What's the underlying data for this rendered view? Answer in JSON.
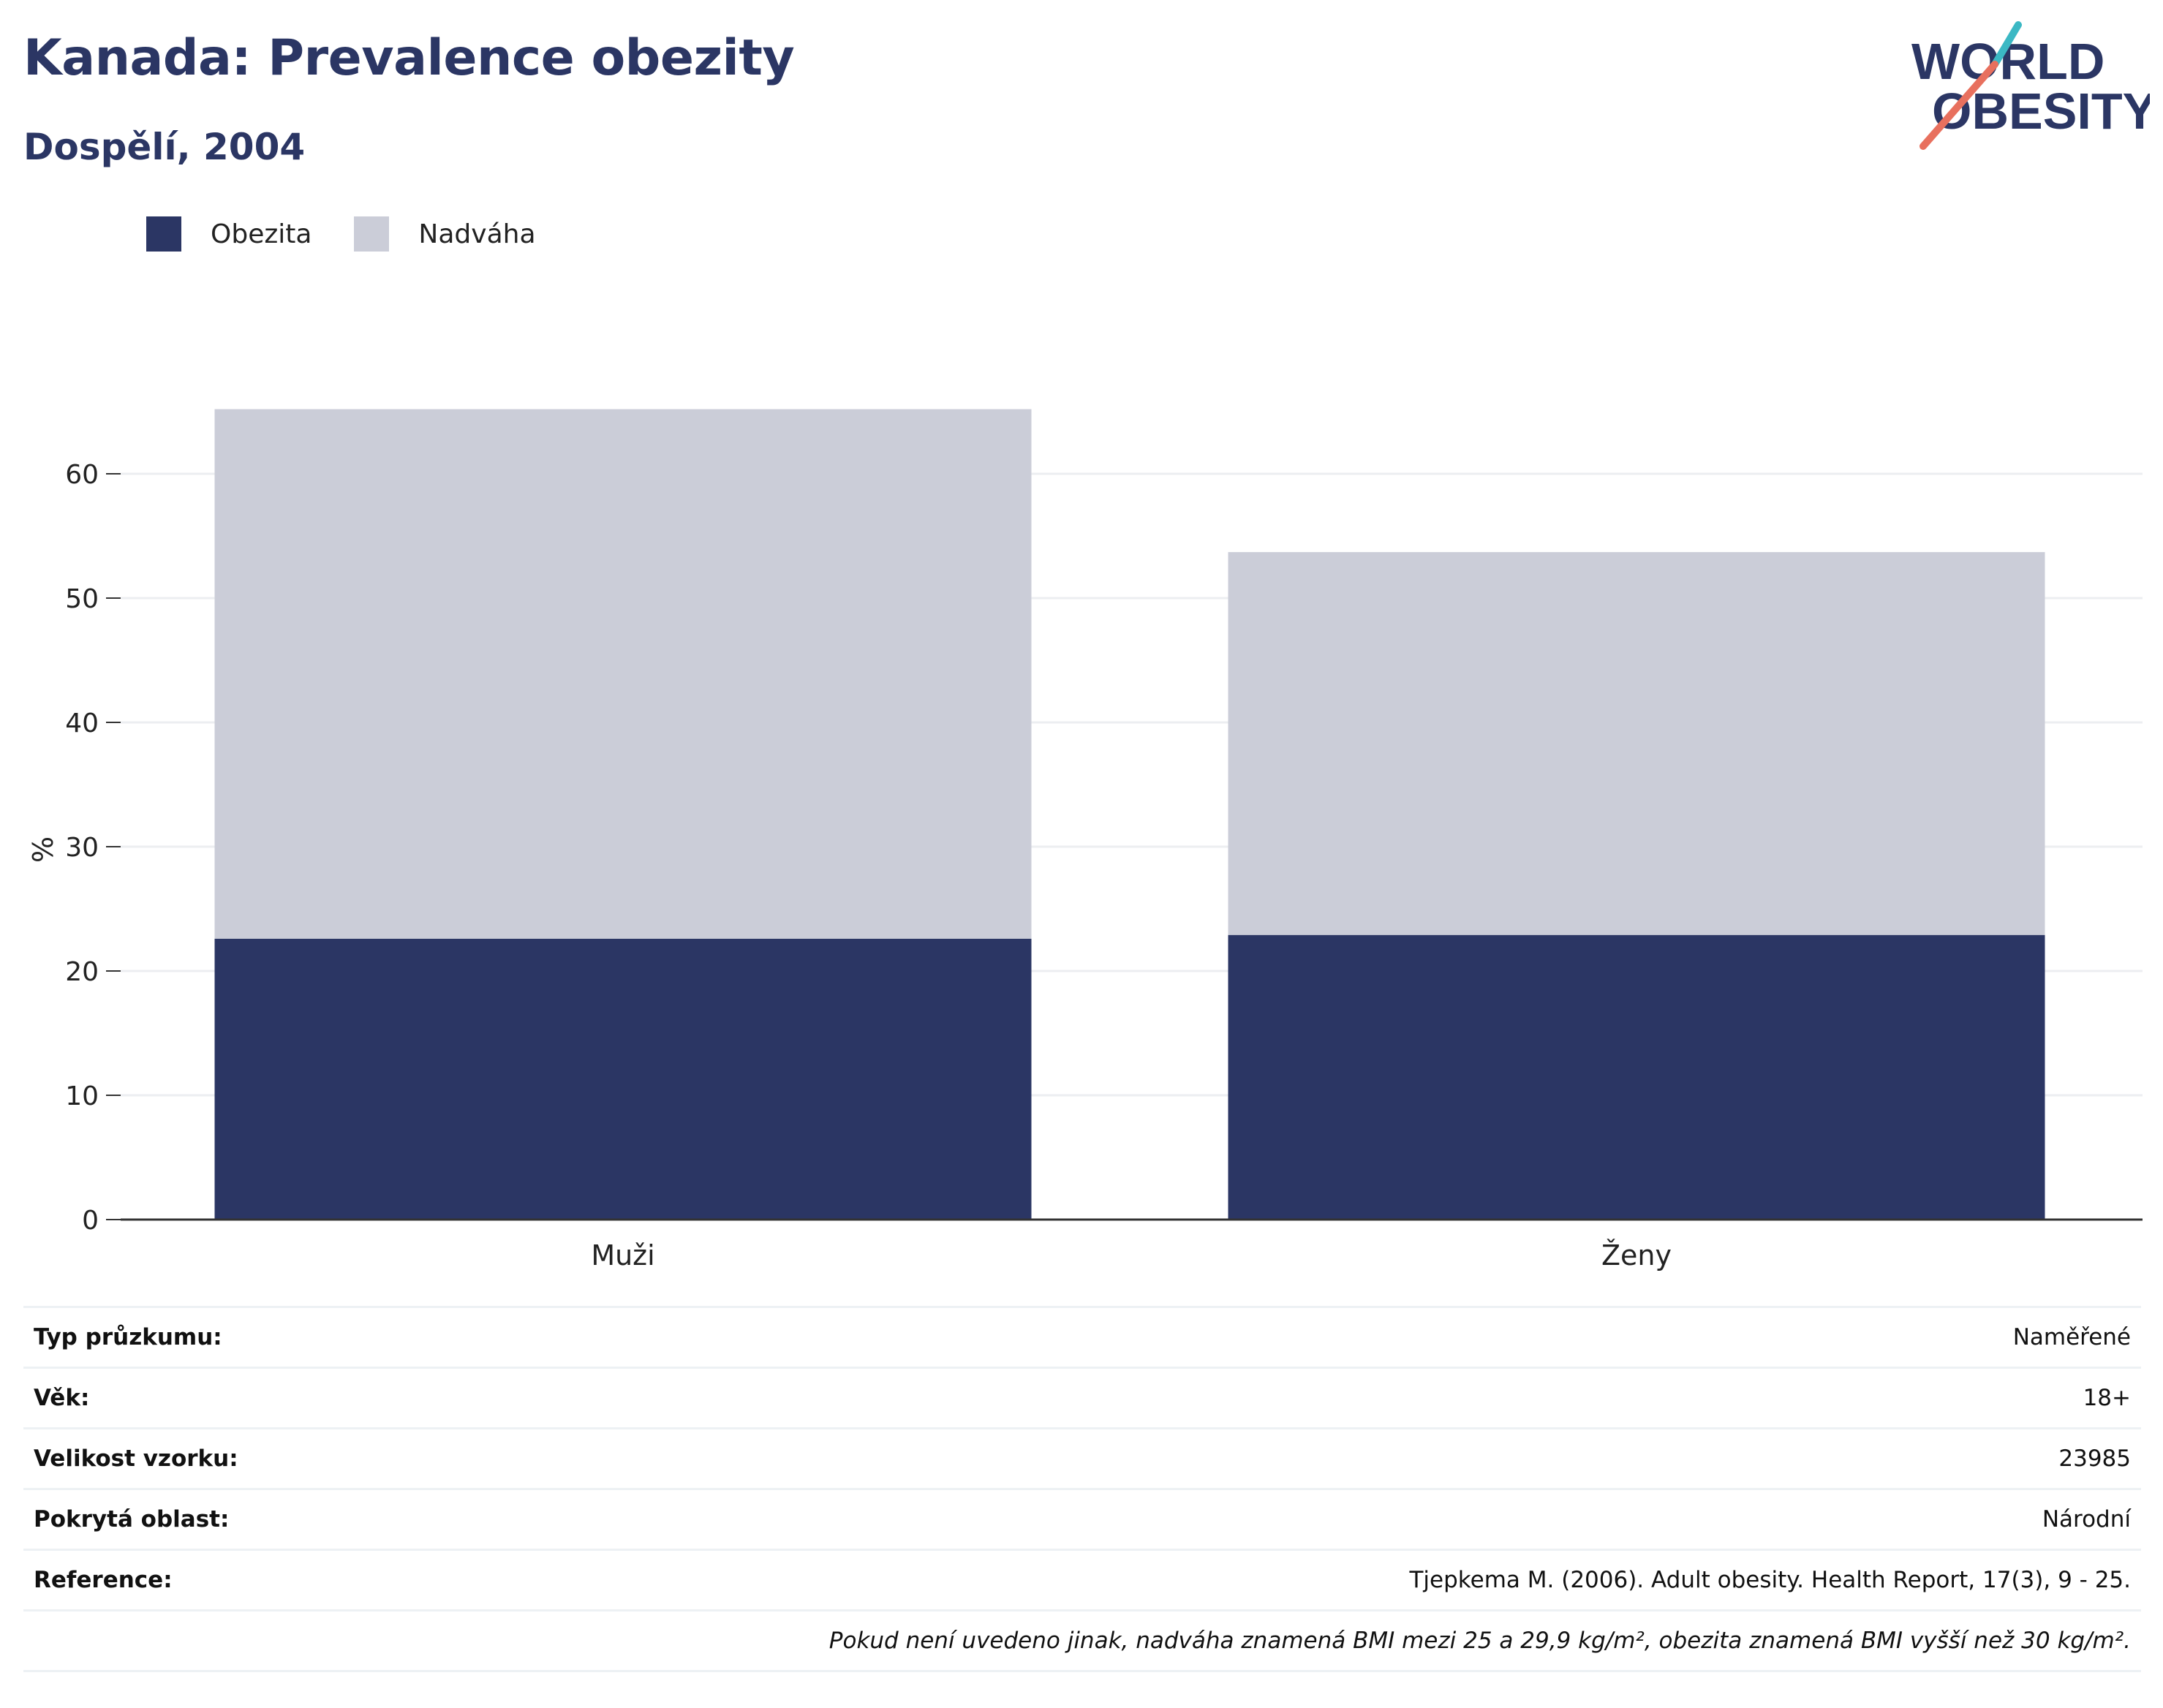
{
  "header": {
    "title": "Kanada: Prevalence obezity",
    "subtitle": "Dospělí, 2004"
  },
  "logo": {
    "line1": "WORLD",
    "line2": "OBESITY",
    "colors": {
      "text": "#2b3664",
      "slash_top": "#3bb8c4",
      "slash_bottom": "#e8705e"
    }
  },
  "legend": [
    {
      "label": "Obezita",
      "color": "#2b3664"
    },
    {
      "label": "Nadváha",
      "color": "#cbcdd8"
    }
  ],
  "chart_data": {
    "type": "bar",
    "stacked": true,
    "categories": [
      "Muži",
      "Ženy"
    ],
    "series": [
      {
        "name": "Obezita",
        "values": [
          22.6,
          22.9
        ],
        "color": "#2b3664"
      },
      {
        "name": "Nadváha",
        "values": [
          42.6,
          30.8
        ],
        "color": "#cbcdd8"
      }
    ],
    "ylabel": "%",
    "ylim": [
      0,
      70
    ],
    "yticks": [
      0,
      10,
      20,
      30,
      40,
      50,
      60
    ],
    "grid": true,
    "legend_position": "top-left"
  },
  "info": {
    "rows": [
      {
        "label": "Typ průzkumu:",
        "value": "Naměřené"
      },
      {
        "label": "Věk:",
        "value": "18+"
      },
      {
        "label": "Velikost vzorku:",
        "value": "23985"
      },
      {
        "label": "Pokrytá oblast:",
        "value": "Národní"
      },
      {
        "label": "Reference:",
        "value": "Tjepkema M. (2006). Adult obesity. Health Report, 17(3), 9 - 25."
      }
    ],
    "note": "Pokud není uvedeno jinak, nadváha znamená BMI mezi 25 a 29,9 kg/m², obezita znamená BMI vyšší než 30 kg/m²."
  }
}
